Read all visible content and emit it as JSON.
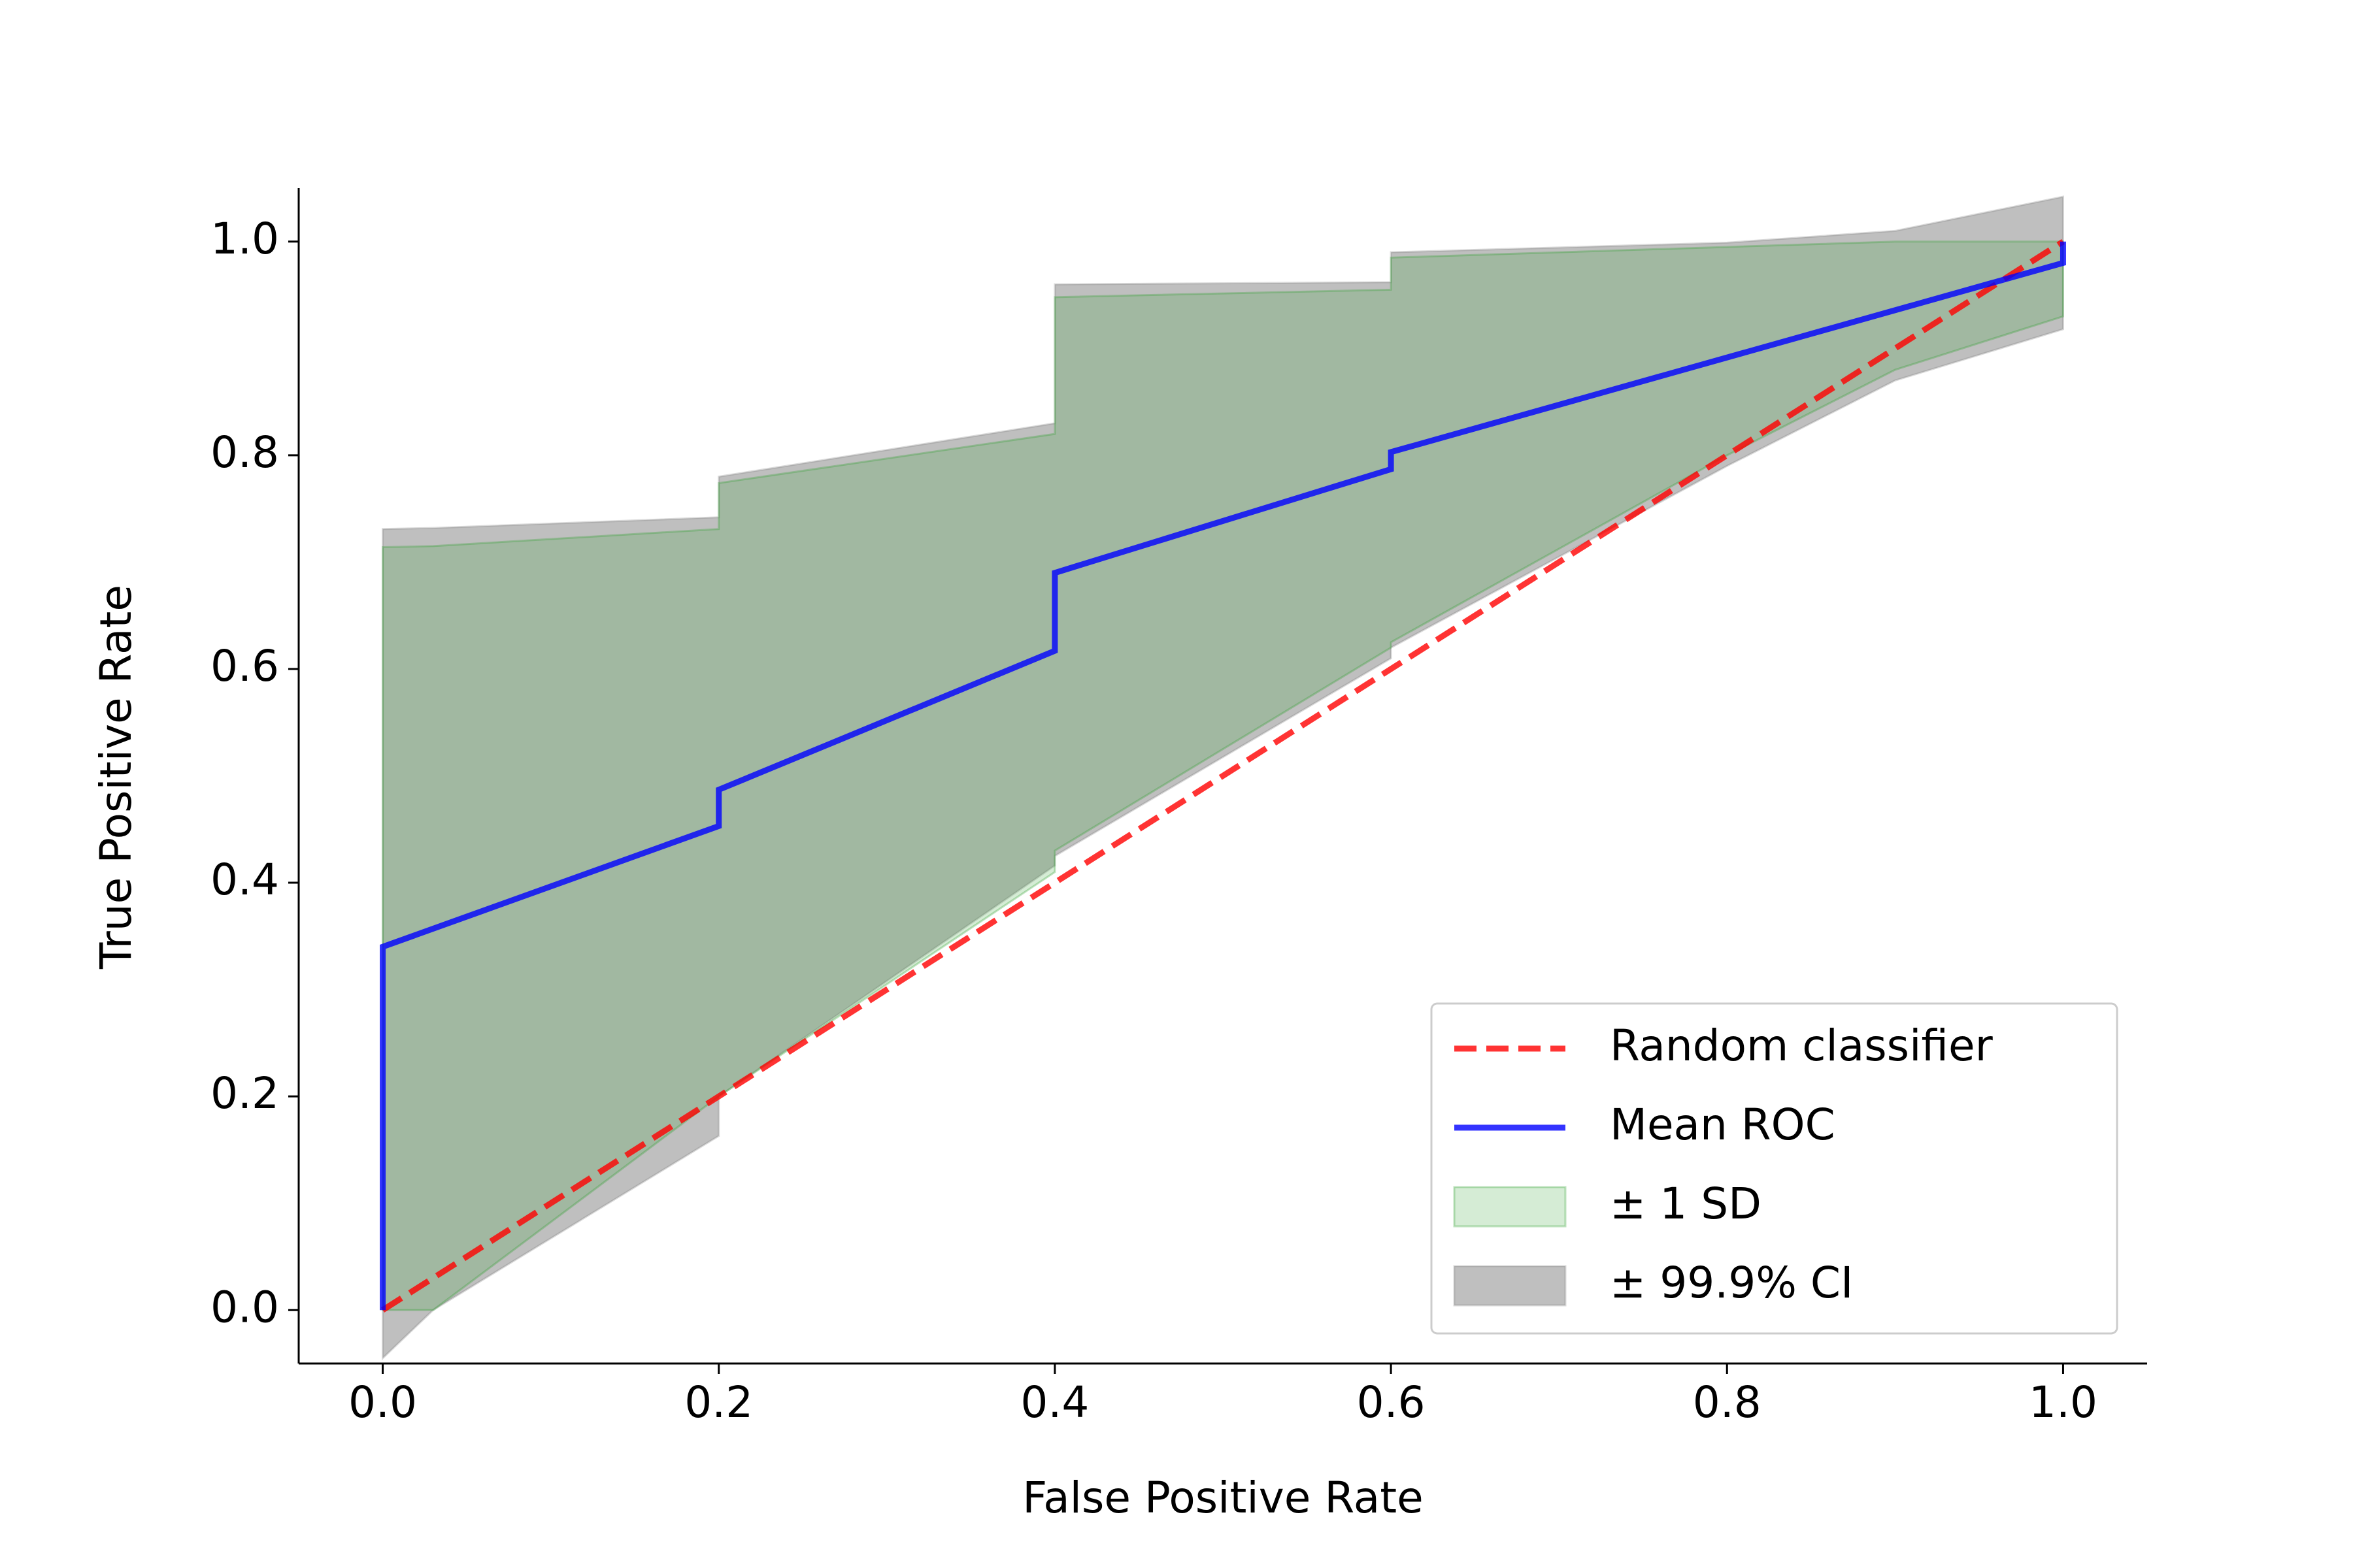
{
  "chart_data": {
    "type": "roc",
    "x_label": "False Positive Rate",
    "y_label": "True Positive Rate",
    "xlim": [
      -0.05,
      1.05
    ],
    "ylim": [
      -0.05,
      1.05
    ],
    "xticks": [
      {
        "value": 0,
        "label": "0.0"
      },
      0.2,
      0.4,
      0.6,
      0.8,
      {
        "value": 1,
        "label": "1.0"
      }
    ],
    "yticks": [
      {
        "value": 0,
        "label": "0.0"
      },
      0.2,
      0.4,
      0.6,
      0.8,
      {
        "value": 1,
        "label": "1.0"
      }
    ],
    "legend": "lower right",
    "series": [
      {
        "name": "Random classifier",
        "kind": "line",
        "line_style": "dashed",
        "color": "#ff0000",
        "x": [
          0,
          1
        ],
        "values": [
          0,
          1
        ]
      },
      {
        "name": "Mean ROC",
        "kind": "line",
        "line_style": "solid",
        "color": "#0000ff",
        "x": [
          0,
          0,
          0.2,
          0.2,
          0.4,
          0.4,
          0.6,
          0.6,
          1,
          1
        ],
        "values": [
          0,
          0.34,
          0.453,
          0.487,
          0.617,
          0.69,
          0.787,
          0.803,
          0.98,
          1.0
        ]
      },
      {
        "name": "± 1 SD",
        "kind": "band",
        "color": "#2ca02c",
        "x": [
          0,
          0.03,
          0.2,
          0.2,
          0.4,
          0.4,
          0.6,
          0.6,
          0.8,
          0.9,
          1.0
        ],
        "upper": [
          0.714,
          0.715,
          0.731,
          0.774,
          0.82,
          0.948,
          0.955,
          0.985,
          0.995,
          1.0,
          1.0
        ],
        "lower": [
          0,
          0,
          0.2,
          0.2,
          0.41,
          0.43,
          0.62,
          0.625,
          0.8,
          0.88,
          0.93
        ]
      },
      {
        "name": "± 99.9% CI",
        "kind": "band",
        "color": "#808080",
        "x": [
          0,
          0.03,
          0.2,
          0.2,
          0.4,
          0.4,
          0.6,
          0.6,
          0.8,
          0.9,
          1.0
        ],
        "upper": [
          0.731,
          0.732,
          0.742,
          0.78,
          0.83,
          0.96,
          0.962,
          0.99,
          0.999,
          1.01,
          1.042
        ],
        "lower": [
          -0.045,
          0,
          0.163,
          0.2,
          0.416,
          0.425,
          0.61,
          0.62,
          0.79,
          0.87,
          0.918
        ]
      }
    ]
  }
}
